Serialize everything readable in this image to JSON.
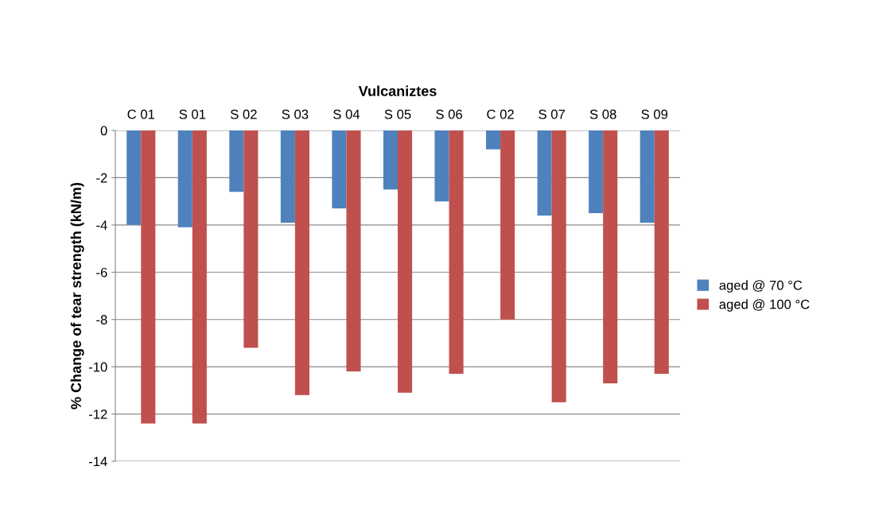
{
  "chart_data": {
    "type": "bar",
    "xlabel": "Vulcaniztes",
    "ylabel": "% Change of tear strength (kN/m)",
    "categories": [
      "C 01",
      "S 01",
      "S 02",
      "S 03",
      "S 04",
      "S 05",
      "S 06",
      "C 02",
      "S 07",
      "S 08",
      "S 09"
    ],
    "series": [
      {
        "name": "aged @ 70 °C",
        "color": "#4f81bd",
        "values": [
          -4.0,
          -4.1,
          -2.6,
          -3.9,
          -3.3,
          -2.5,
          -3.0,
          -0.8,
          -3.6,
          -3.5,
          -3.9
        ]
      },
      {
        "name": "aged @ 100 °C",
        "color": "#c0504d",
        "values": [
          -12.4,
          -12.4,
          -9.2,
          -11.2,
          -10.2,
          -11.1,
          -10.3,
          -8.0,
          -11.5,
          -10.7,
          -10.3
        ]
      }
    ],
    "ylim": [
      -14,
      0
    ],
    "yticks": [
      -14,
      -12,
      -10,
      -8,
      -6,
      -4,
      -2,
      0
    ],
    "grid": "y",
    "legend": "right"
  }
}
